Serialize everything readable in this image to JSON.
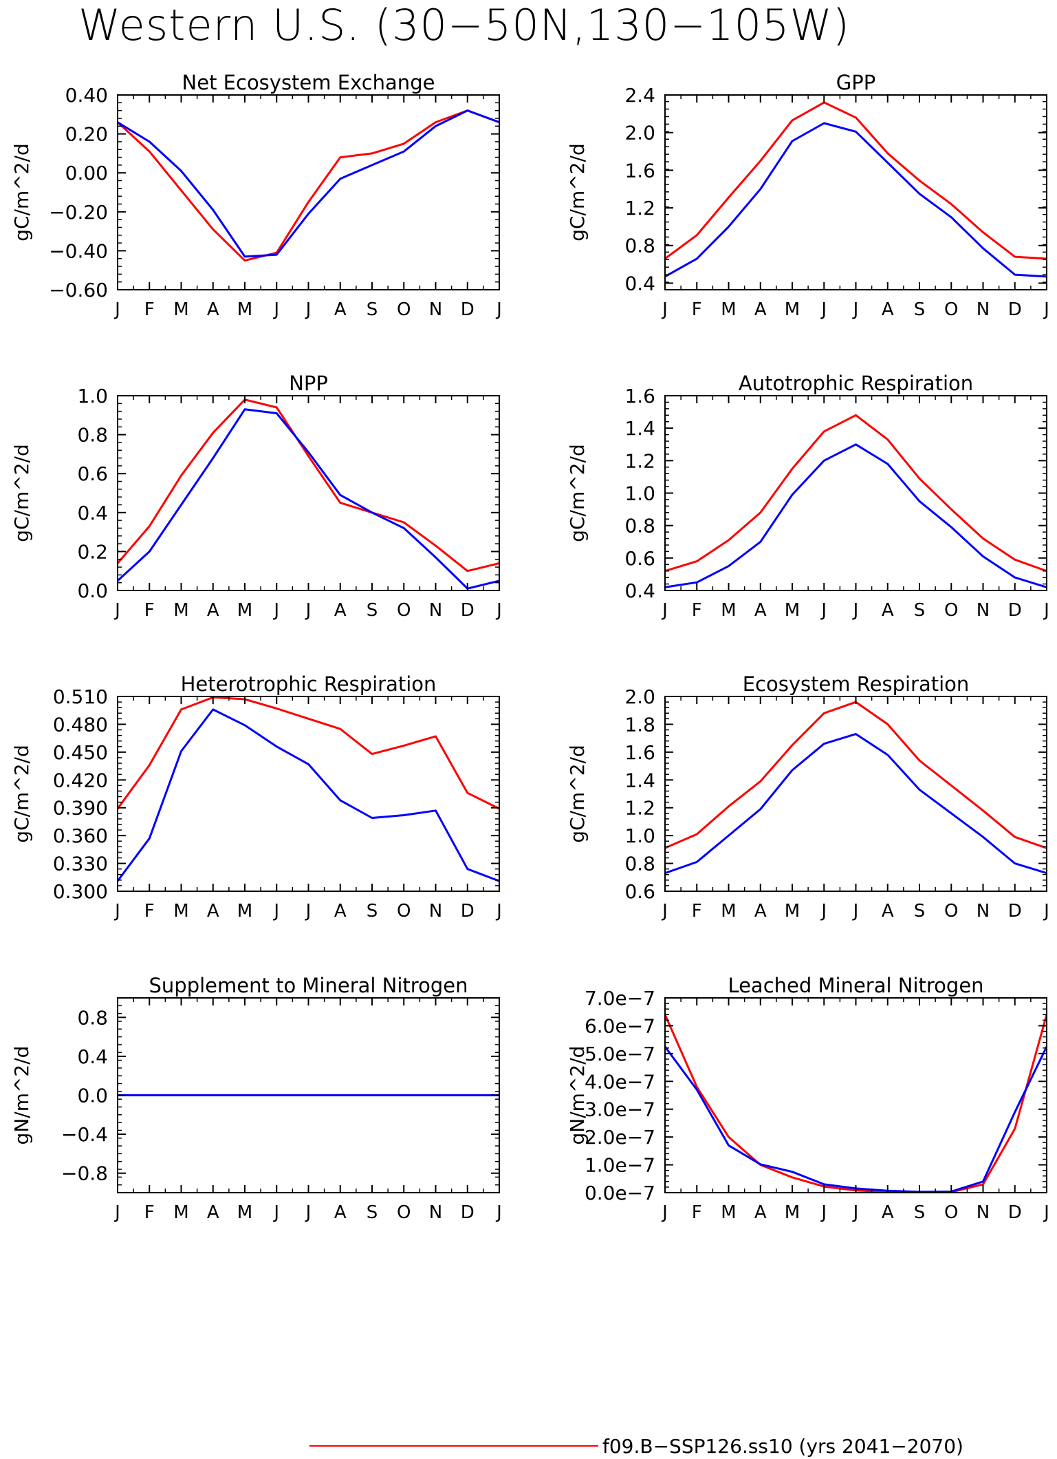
{
  "page": {
    "title": "Western U.S. (30−50N,130−105W)"
  },
  "legend": {
    "entries": [
      {
        "label": "f09.B−SSP126.ss10 (yrs 2041−2070)",
        "color": "#ff0000"
      }
    ]
  },
  "colors": {
    "series_red": "#ff0000",
    "series_blue": "#0000ff"
  },
  "month_labels": [
    "J",
    "F",
    "M",
    "A",
    "M",
    "J",
    "J",
    "A",
    "S",
    "O",
    "N",
    "D",
    "J"
  ],
  "chart_data": [
    {
      "type": "line",
      "title": "Net Ecosystem Exchange",
      "ylabel": "gC/m^2/d",
      "ylim": [
        -0.6,
        0.4
      ],
      "yticks": [
        -0.6,
        -0.4,
        -0.2,
        0.0,
        0.2,
        0.4
      ],
      "ytick_labels": [
        "−0.60",
        "−0.40",
        "−0.20",
        "0.00",
        "0.20",
        "0.40"
      ],
      "series": [
        {
          "color": "#ff0000",
          "values": [
            0.26,
            0.11,
            -0.09,
            -0.29,
            -0.45,
            -0.41,
            -0.15,
            0.08,
            0.1,
            0.15,
            0.26,
            0.32,
            0.26
          ]
        },
        {
          "color": "#0000ff",
          "values": [
            0.26,
            0.16,
            0.01,
            -0.19,
            -0.43,
            -0.42,
            -0.21,
            -0.03,
            0.04,
            0.11,
            0.24,
            0.32,
            0.26
          ]
        }
      ]
    },
    {
      "type": "line",
      "title": "GPP",
      "ylabel": "gC/m^2/d",
      "ylim": [
        0.33,
        2.4
      ],
      "yticks": [
        0.4,
        0.8,
        1.2,
        1.6,
        2.0,
        2.4
      ],
      "ytick_labels": [
        "0.4",
        "0.8",
        "1.2",
        "1.6",
        "2.0",
        "2.4"
      ],
      "series": [
        {
          "color": "#ff0000",
          "values": [
            0.66,
            0.91,
            1.31,
            1.7,
            2.13,
            2.32,
            2.16,
            1.78,
            1.49,
            1.24,
            0.94,
            0.68,
            0.66
          ]
        },
        {
          "color": "#0000ff",
          "values": [
            0.47,
            0.66,
            1.0,
            1.4,
            1.91,
            2.1,
            2.01,
            1.68,
            1.35,
            1.1,
            0.77,
            0.49,
            0.47
          ]
        }
      ]
    },
    {
      "type": "line",
      "title": "NPP",
      "ylabel": "gC/m^2/d",
      "ylim": [
        0.0,
        1.0
      ],
      "yticks": [
        0.0,
        0.2,
        0.4,
        0.6,
        0.8,
        1.0
      ],
      "ytick_labels": [
        "0.0",
        "0.2",
        "0.4",
        "0.6",
        "0.8",
        "1.0"
      ],
      "series": [
        {
          "color": "#ff0000",
          "values": [
            0.14,
            0.33,
            0.59,
            0.81,
            0.98,
            0.94,
            0.69,
            0.45,
            0.4,
            0.35,
            0.23,
            0.1,
            0.14
          ]
        },
        {
          "color": "#0000ff",
          "values": [
            0.05,
            0.2,
            0.44,
            0.68,
            0.93,
            0.91,
            0.71,
            0.49,
            0.4,
            0.32,
            0.17,
            0.01,
            0.05
          ]
        }
      ]
    },
    {
      "type": "line",
      "title": "Autotrophic Respiration",
      "ylabel": "gC/m^2/d",
      "ylim": [
        0.4,
        1.6
      ],
      "yticks": [
        0.4,
        0.6,
        0.8,
        1.0,
        1.2,
        1.4,
        1.6
      ],
      "ytick_labels": [
        "0.4",
        "0.6",
        "0.8",
        "1.0",
        "1.2",
        "1.4",
        "1.6"
      ],
      "series": [
        {
          "color": "#ff0000",
          "values": [
            0.52,
            0.58,
            0.71,
            0.88,
            1.15,
            1.38,
            1.48,
            1.33,
            1.09,
            0.9,
            0.72,
            0.59,
            0.52
          ]
        },
        {
          "color": "#0000ff",
          "values": [
            0.42,
            0.45,
            0.55,
            0.7,
            0.99,
            1.2,
            1.3,
            1.18,
            0.95,
            0.79,
            0.61,
            0.48,
            0.42
          ]
        }
      ]
    },
    {
      "type": "line",
      "title": "Heterotrophic Respiration",
      "ylabel": "gC/m^2/d",
      "ylim": [
        0.3,
        0.51
      ],
      "yticks": [
        0.3,
        0.33,
        0.36,
        0.39,
        0.42,
        0.45,
        0.48,
        0.51
      ],
      "ytick_labels": [
        "0.300",
        "0.330",
        "0.360",
        "0.390",
        "0.420",
        "0.450",
        "0.480",
        "0.510"
      ],
      "series": [
        {
          "color": "#ff0000",
          "values": [
            0.389,
            0.436,
            0.496,
            0.509,
            0.507,
            0.497,
            0.486,
            0.475,
            0.448,
            0.457,
            0.467,
            0.406,
            0.389
          ]
        },
        {
          "color": "#0000ff",
          "values": [
            0.311,
            0.357,
            0.451,
            0.496,
            0.479,
            0.456,
            0.437,
            0.398,
            0.379,
            0.382,
            0.387,
            0.324,
            0.311
          ]
        }
      ]
    },
    {
      "type": "line",
      "title": "Ecosystem Respiration",
      "ylabel": "gC/m^2/d",
      "ylim": [
        0.6,
        2.0
      ],
      "yticks": [
        0.6,
        0.8,
        1.0,
        1.2,
        1.4,
        1.6,
        1.8,
        2.0
      ],
      "ytick_labels": [
        "0.6",
        "0.8",
        "1.0",
        "1.2",
        "1.4",
        "1.6",
        "1.8",
        "2.0"
      ],
      "series": [
        {
          "color": "#ff0000",
          "values": [
            0.91,
            1.01,
            1.21,
            1.39,
            1.65,
            1.88,
            1.96,
            1.8,
            1.54,
            1.36,
            1.18,
            0.99,
            0.91
          ]
        },
        {
          "color": "#0000ff",
          "values": [
            0.73,
            0.81,
            1.0,
            1.19,
            1.47,
            1.66,
            1.73,
            1.58,
            1.33,
            1.16,
            0.99,
            0.8,
            0.73
          ]
        }
      ]
    },
    {
      "type": "line",
      "title": "Supplement to Mineral Nitrogen",
      "ylabel": "gN/m^2/d",
      "ylim": [
        -1.0,
        1.0
      ],
      "yticks": [
        -0.8,
        -0.4,
        0.0,
        0.4,
        0.8
      ],
      "ytick_labels": [
        "−0.8",
        "−0.4",
        "0.0",
        "0.4",
        "0.8"
      ],
      "series": [
        {
          "color": "#ff0000",
          "values": [
            0,
            0,
            0,
            0,
            0,
            0,
            0,
            0,
            0,
            0,
            0,
            0,
            0
          ]
        },
        {
          "color": "#0000ff",
          "values": [
            0,
            0,
            0,
            0,
            0,
            0,
            0,
            0,
            0,
            0,
            0,
            0,
            0
          ]
        }
      ]
    },
    {
      "type": "line",
      "title": "Leached Mineral Nitrogen",
      "ylabel": "gN/m^2/d",
      "ylim": [
        0.0,
        7e-07
      ],
      "yticks": [
        0.0,
        1e-07,
        2e-07,
        3e-07,
        4e-07,
        5e-07,
        6e-07,
        7e-07
      ],
      "ytick_labels": [
        "0.0e−7",
        "1.0e−7",
        "2.0e−7",
        "3.0e−7",
        "4.0e−7",
        "5.0e−7",
        "6.0e−7",
        "7.0e−7"
      ],
      "series": [
        {
          "color": "#ff0000",
          "values": [
            6.4e-07,
            3.8e-07,
            2e-07,
            1e-07,
            5.5e-08,
            2.2e-08,
            8e-09,
            3e-09,
            1e-09,
            2e-09,
            3e-08,
            2.3e-07,
            6.4e-07
          ]
        },
        {
          "color": "#0000ff",
          "values": [
            5.25e-07,
            3.7e-07,
            1.7e-07,
            1.02e-07,
            7.5e-08,
            3e-08,
            1.5e-08,
            7e-09,
            3e-09,
            4e-09,
            4e-08,
            2.9e-07,
            5.25e-07
          ]
        }
      ]
    }
  ]
}
